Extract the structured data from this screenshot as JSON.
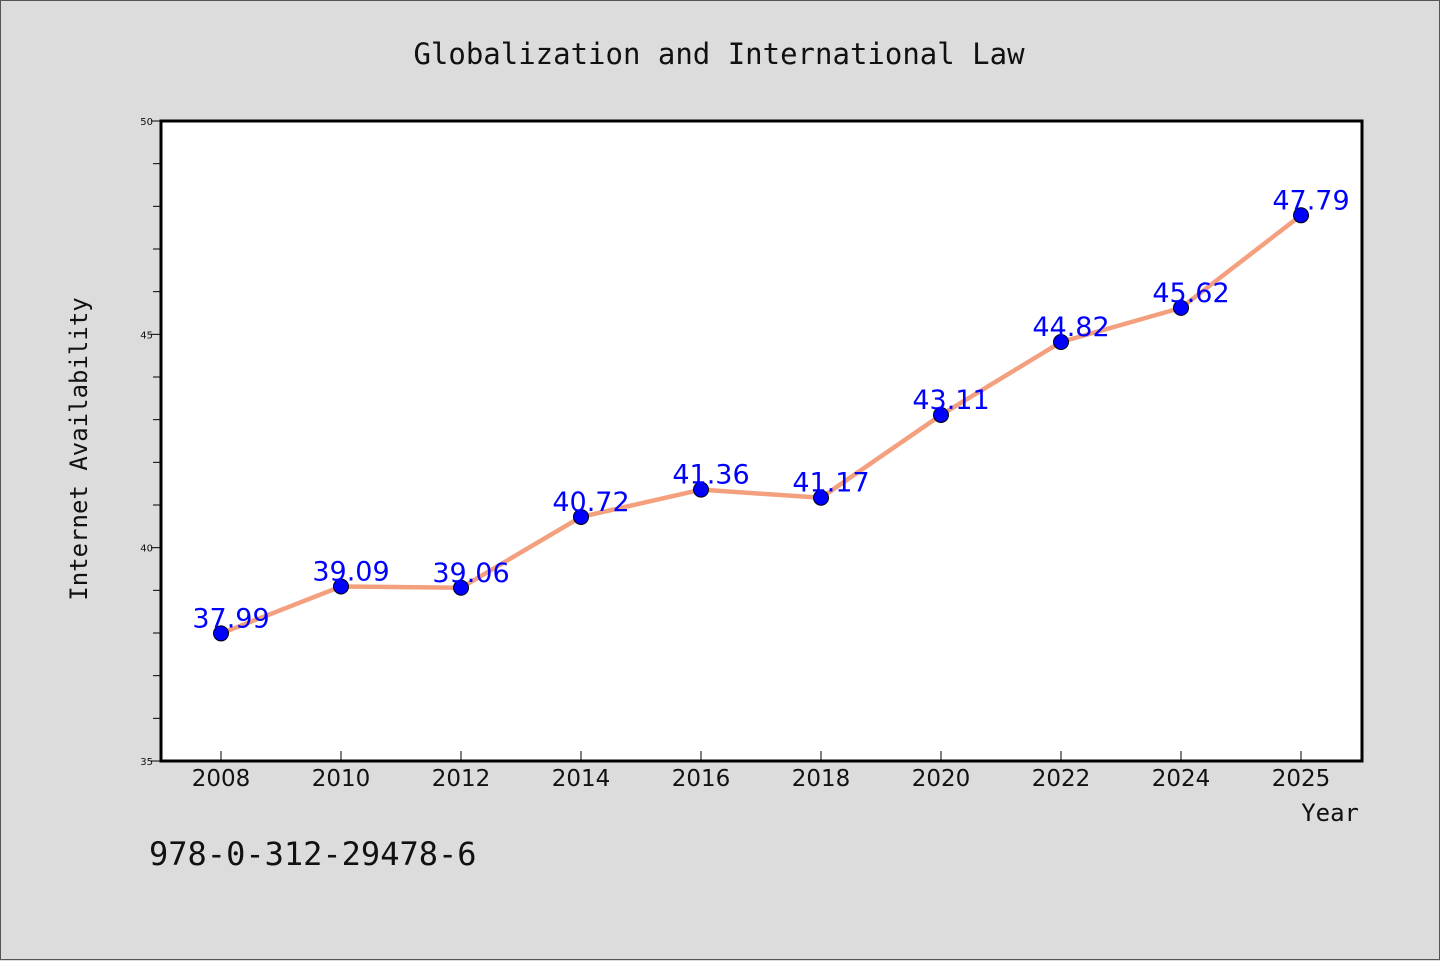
{
  "chart_data": {
    "type": "line",
    "title": "Globalization and International Law",
    "xlabel": "Year",
    "ylabel": "Internet Availability",
    "categories": [
      "2008",
      "2010",
      "2012",
      "2014",
      "2016",
      "2018",
      "2020",
      "2022",
      "2024",
      "2025"
    ],
    "series": [
      {
        "values": [
          37.99,
          39.09,
          39.06,
          40.72,
          41.36,
          41.17,
          43.11,
          44.82,
          45.62,
          47.79
        ],
        "data_labels": [
          "37.99",
          "39.09",
          "39.06",
          "40.72",
          "41.36",
          "41.17",
          "43.11",
          "44.82",
          "45.62",
          "47.79"
        ]
      }
    ],
    "ylim": [
      35,
      50
    ],
    "yticks": [
      35,
      40,
      45,
      50
    ],
    "y_tick_labels": [
      "35",
      "40",
      "45",
      "50"
    ],
    "grid": false,
    "colors": {
      "line": "#f4a07f",
      "marker": "#0000ff",
      "label": "#0000ff"
    }
  },
  "footer_text": "978-0-312-29478-6"
}
